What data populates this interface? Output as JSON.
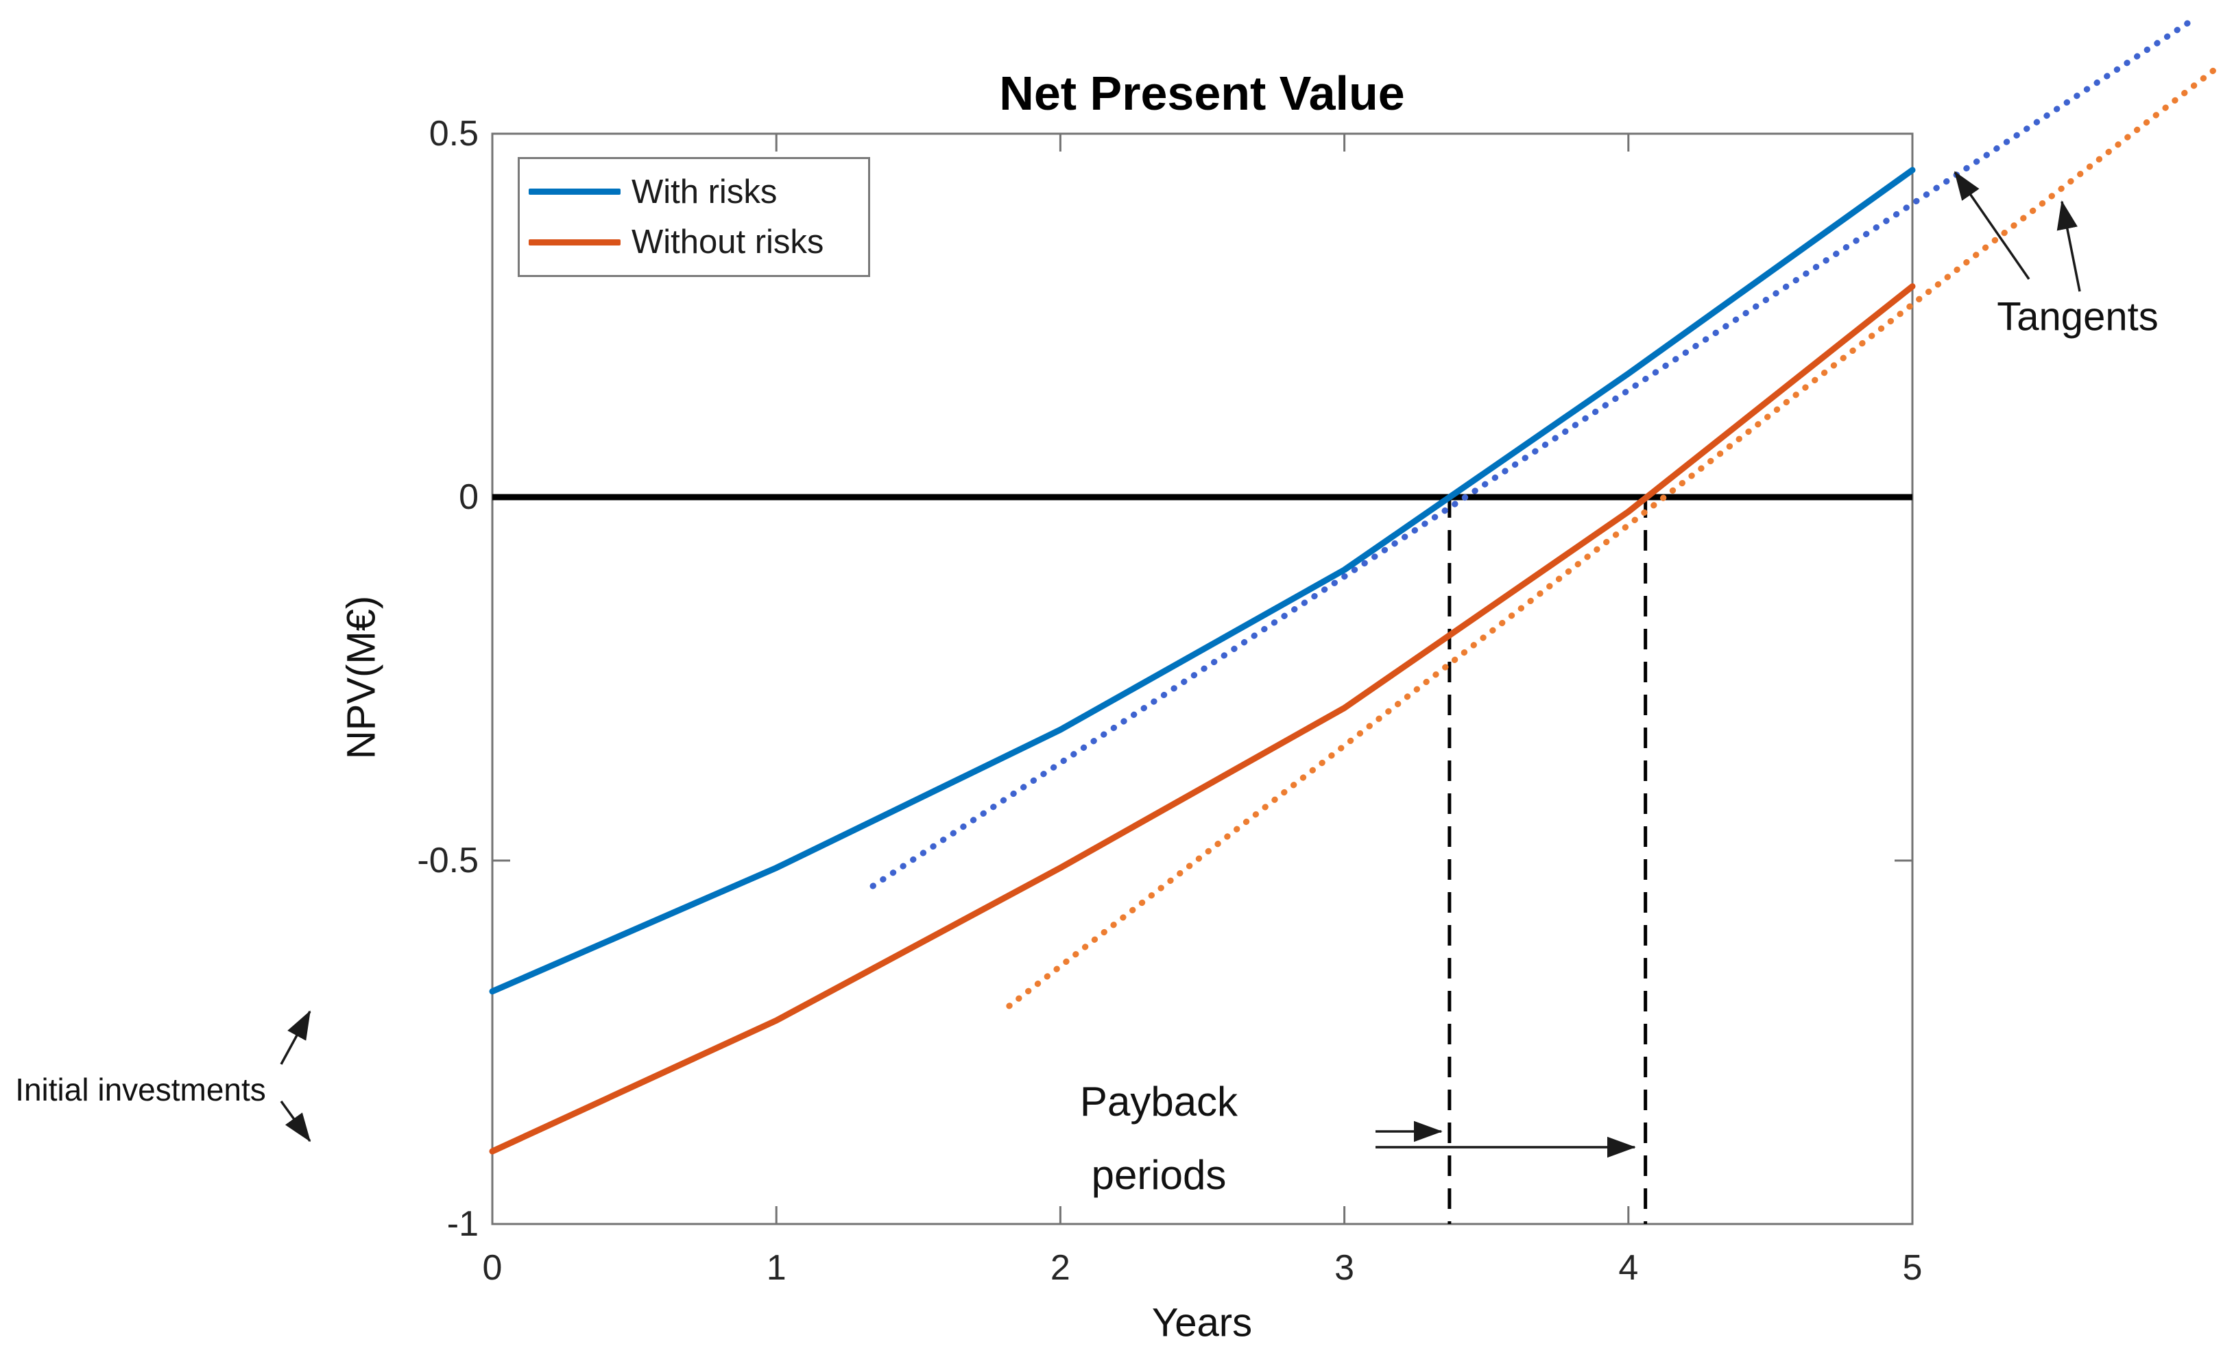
{
  "title": "Net Present Value",
  "x_axis_label": "Years",
  "y_axis_label": "NPV(M€)",
  "legend": {
    "items": [
      {
        "label": "With risks",
        "color": "#0072BD"
      },
      {
        "label": "Without risks",
        "color": "#D95319"
      }
    ]
  },
  "annotations": {
    "tangents_label": "Tangents",
    "initial_investments_label": "Initial investments",
    "payback_label_line1": "Payback",
    "payback_label_line2": "periods"
  },
  "chart_data": {
    "type": "line",
    "title": "Net Present Value",
    "xlabel": "Years",
    "ylabel": "NPV(M€)",
    "xlim": [
      0,
      5
    ],
    "ylim": [
      -1,
      0.5
    ],
    "grid": false,
    "legend_position": "upper left",
    "x": [
      0,
      1,
      2,
      3,
      4,
      5
    ],
    "x_ticks": [
      {
        "label": "0",
        "value": 0
      },
      {
        "label": "1",
        "value": 1
      },
      {
        "label": "2",
        "value": 2
      },
      {
        "label": "3",
        "value": 3
      },
      {
        "label": "4",
        "value": 4
      },
      {
        "label": "5",
        "value": 5
      }
    ],
    "y_ticks": [
      {
        "label": "0.5",
        "value": 0.5
      },
      {
        "label": "0",
        "value": 0
      },
      {
        "label": "-0.5",
        "value": -0.5
      },
      {
        "label": "-1",
        "value": -1
      }
    ],
    "series": [
      {
        "name": "With risks",
        "color": "#0072BD",
        "values": [
          -0.68,
          -0.51,
          -0.32,
          -0.1,
          0.17,
          0.45
        ]
      },
      {
        "name": "Without risks",
        "color": "#D95319",
        "values": [
          -0.9,
          -0.72,
          -0.51,
          -0.29,
          -0.02,
          0.29
        ]
      }
    ],
    "tangent_lines": [
      {
        "name": "tangent-line-with-risks",
        "color": "#3E63D0",
        "from": [
          1.34,
          -0.535
        ],
        "to": [
          6.0,
          0.66
        ]
      },
      {
        "name": "tangent-line-without-risks",
        "color": "#ED7D31",
        "from": [
          1.82,
          -0.7
        ],
        "to": [
          6.07,
          0.59
        ]
      }
    ],
    "payback_years": [
      3.37,
      4.06
    ],
    "zero_line": 0
  }
}
